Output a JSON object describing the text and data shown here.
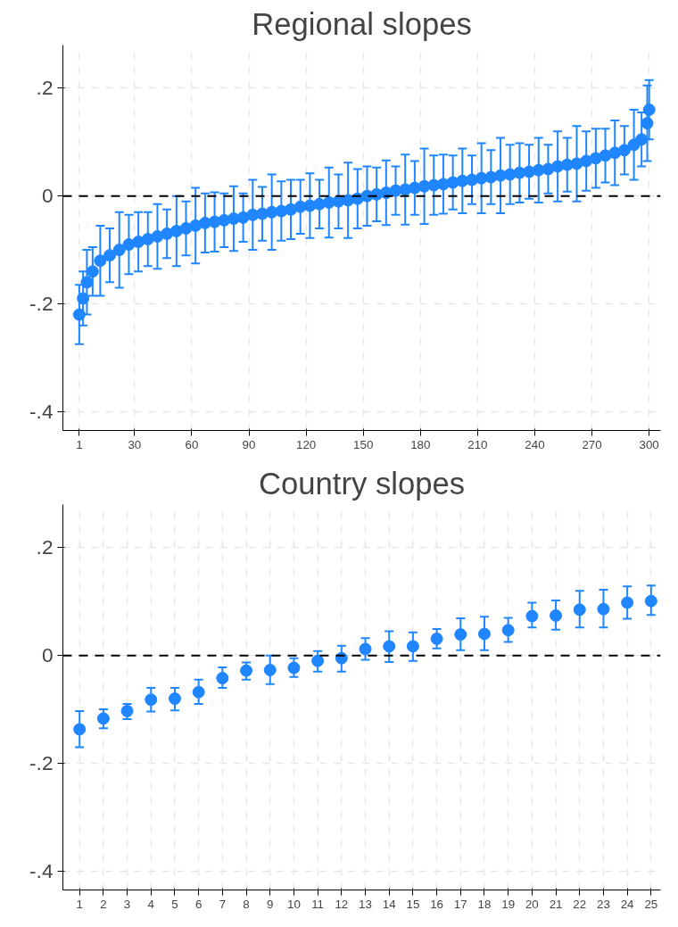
{
  "chart_data": [
    {
      "type": "scatter",
      "title": "Regional slopes",
      "marker": "circle",
      "grid": true,
      "x": [
        1,
        3,
        5,
        8,
        12,
        17,
        22,
        27,
        32,
        37,
        42,
        47,
        52,
        57,
        62,
        67,
        72,
        77,
        82,
        87,
        92,
        97,
        102,
        107,
        112,
        117,
        122,
        127,
        132,
        137,
        142,
        147,
        152,
        157,
        162,
        167,
        172,
        177,
        182,
        187,
        192,
        197,
        202,
        207,
        212,
        217,
        222,
        227,
        232,
        237,
        242,
        247,
        252,
        257,
        262,
        267,
        272,
        277,
        282,
        287,
        292,
        296,
        299,
        300
      ],
      "series": [
        {
          "color": "#1f86ff",
          "values": [
            -0.22,
            -0.19,
            -0.16,
            -0.14,
            -0.12,
            -0.11,
            -0.1,
            -0.09,
            -0.085,
            -0.08,
            -0.075,
            -0.07,
            -0.065,
            -0.06,
            -0.055,
            -0.05,
            -0.048,
            -0.045,
            -0.042,
            -0.04,
            -0.035,
            -0.033,
            -0.03,
            -0.028,
            -0.025,
            -0.02,
            -0.018,
            -0.015,
            -0.012,
            -0.01,
            -0.008,
            -0.005,
            0,
            0.003,
            0.006,
            0.01,
            0.012,
            0.015,
            0.018,
            0.02,
            0.022,
            0.025,
            0.028,
            0.03,
            0.033,
            0.035,
            0.038,
            0.04,
            0.043,
            0.045,
            0.048,
            0.05,
            0.055,
            0.058,
            0.06,
            0.065,
            0.07,
            0.075,
            0.08,
            0.085,
            0.095,
            0.105,
            0.135,
            0.16
          ],
          "errors": [
            0.055,
            0.05,
            0.06,
            0.045,
            0.065,
            0.05,
            0.07,
            0.055,
            0.055,
            0.05,
            0.06,
            0.045,
            0.065,
            0.05,
            0.07,
            0.055,
            0.055,
            0.05,
            0.06,
            0.045,
            0.065,
            0.05,
            0.07,
            0.055,
            0.055,
            0.05,
            0.06,
            0.045,
            0.065,
            0.05,
            0.07,
            0.055,
            0.055,
            0.05,
            0.06,
            0.045,
            0.065,
            0.05,
            0.07,
            0.055,
            0.055,
            0.05,
            0.06,
            0.045,
            0.065,
            0.05,
            0.07,
            0.055,
            0.055,
            0.05,
            0.06,
            0.045,
            0.065,
            0.05,
            0.07,
            0.055,
            0.055,
            0.05,
            0.06,
            0.045,
            0.065,
            0.05,
            0.07,
            0.055
          ]
        }
      ],
      "xlim": [
        -7.6,
        306
      ],
      "xticks": [
        1,
        30,
        60,
        90,
        120,
        150,
        180,
        210,
        240,
        270,
        300
      ],
      "ylim": [
        -0.435,
        0.28
      ],
      "yticks": [
        {
          "value": 0.2,
          "label": ".2"
        },
        0,
        {
          "value": -0.2,
          "label": "-.2"
        },
        {
          "value": -0.4,
          "label": "-.4"
        }
      ],
      "ref_lines": [
        {
          "axis": "y",
          "value": 0,
          "color": "#000000",
          "line_style": "dashed"
        }
      ]
    },
    {
      "type": "scatter",
      "title": "Country slopes",
      "marker": "circle",
      "grid": true,
      "x": [
        1,
        2,
        3,
        4,
        5,
        6,
        7,
        8,
        9,
        10,
        11,
        12,
        13,
        14,
        15,
        16,
        17,
        18,
        19,
        20,
        21,
        22,
        23,
        24,
        25
      ],
      "series": [
        {
          "color": "#1f86ff",
          "values": [
            -0.137,
            -0.117,
            -0.103,
            -0.082,
            -0.08,
            -0.068,
            -0.042,
            -0.028,
            -0.027,
            -0.023,
            -0.01,
            -0.005,
            0.012,
            0.017,
            0.017,
            0.031,
            0.039,
            0.04,
            0.047,
            0.073,
            0.074,
            0.085,
            0.086,
            0.098,
            0.101
          ],
          "errors": [
            [
              -0.17,
              -0.103
            ],
            [
              -0.135,
              -0.1
            ],
            [
              -0.118,
              -0.09
            ],
            [
              -0.104,
              -0.06
            ],
            [
              -0.102,
              -0.06
            ],
            [
              -0.09,
              -0.045
            ],
            [
              -0.06,
              -0.022
            ],
            [
              -0.045,
              -0.013
            ],
            [
              -0.053,
              0
            ],
            [
              -0.04,
              -0.005
            ],
            [
              -0.03,
              0.008
            ],
            [
              -0.03,
              0.018
            ],
            [
              -0.008,
              0.032
            ],
            [
              -0.012,
              0.045
            ],
            [
              -0.01,
              0.043
            ],
            [
              0.013,
              0.049
            ],
            [
              0.01,
              0.069
            ],
            [
              0.01,
              0.072
            ],
            [
              0.025,
              0.07
            ],
            [
              0.052,
              0.098
            ],
            [
              0.048,
              0.102
            ],
            [
              0.052,
              0.12
            ],
            [
              0.052,
              0.122
            ],
            [
              0.068,
              0.128
            ],
            [
              0.075,
              0.13
            ]
          ]
        }
      ],
      "xlim": [
        0.3,
        25.4
      ],
      "xticks": [
        1,
        2,
        3,
        4,
        5,
        6,
        7,
        8,
        9,
        10,
        11,
        12,
        13,
        14,
        15,
        16,
        17,
        18,
        19,
        20,
        21,
        22,
        23,
        24,
        25
      ],
      "ylim": [
        -0.435,
        0.28
      ],
      "yticks": [
        {
          "value": 0.2,
          "label": ".2"
        },
        0,
        {
          "value": -0.2,
          "label": "-.2"
        },
        {
          "value": -0.4,
          "label": "-.4"
        }
      ],
      "ref_lines": [
        {
          "axis": "y",
          "value": 0,
          "color": "#000000",
          "line_style": "dashed"
        }
      ]
    }
  ]
}
